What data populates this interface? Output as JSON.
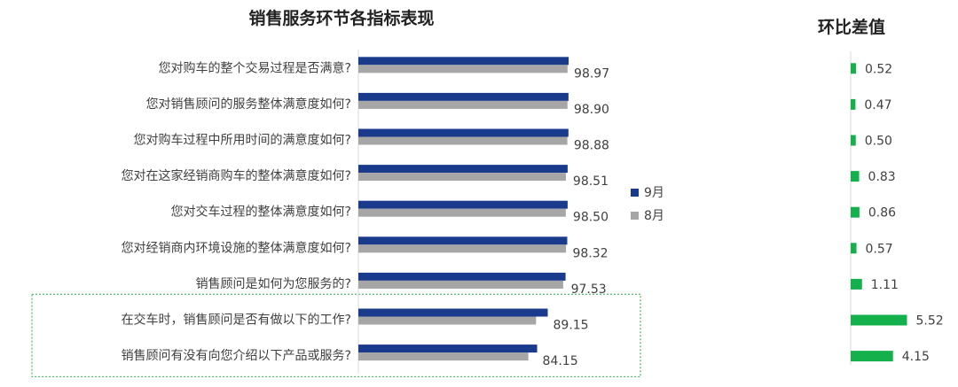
{
  "chart_data": [
    {
      "type": "bar",
      "orientation": "horizontal",
      "title": "销售服务环节各指标表现",
      "categories": [
        "您对购车的整个交易过程是否满意?",
        "您对销售顾问的服务整体满意度如何?",
        "您对购车过程中所用时间的满意度如何?",
        "您对在这家经销商购车的整体满意度如何?",
        "您对交车过程的整体满意度如何?",
        "您对经销商内环境设施的整体满意度如何?",
        "销售顾问是如何为您服务的?",
        "在交车时，销售顾问是否有做以下的工作?",
        "销售顾问有没有向您介绍以下产品或服务?"
      ],
      "series": [
        {
          "name": "9月",
          "color": "#1a3a8c",
          "values": [
            98.97,
            98.9,
            98.88,
            98.51,
            98.5,
            98.32,
            97.53,
            89.15,
            84.15
          ]
        },
        {
          "name": "8月",
          "color": "#a6a6a6",
          "values": [
            98.45,
            98.43,
            98.38,
            97.68,
            97.64,
            97.75,
            96.42,
            83.63,
            80.0
          ]
        }
      ],
      "data_labels": [
        "98.97",
        "98.90",
        "98.88",
        "98.51",
        "98.50",
        "98.32",
        "97.53",
        "89.15",
        "84.15"
      ],
      "legend_position": "right",
      "highlight_box_color": "#2aa84a"
    },
    {
      "type": "bar",
      "orientation": "horizontal",
      "title": "环比差值",
      "values": [
        0.52,
        0.47,
        0.5,
        0.83,
        0.86,
        0.57,
        1.11,
        5.52,
        4.15
      ],
      "data_labels": [
        "0.52",
        "0.47",
        "0.50",
        "0.83",
        "0.86",
        "0.57",
        "1.11",
        "5.52",
        "4.15"
      ],
      "color": "#14b04c"
    }
  ]
}
